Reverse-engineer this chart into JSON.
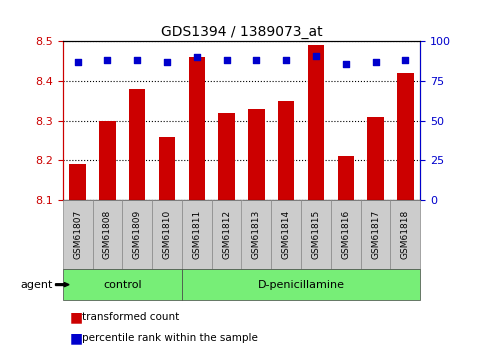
{
  "title": "GDS1394 / 1389073_at",
  "samples": [
    "GSM61807",
    "GSM61808",
    "GSM61809",
    "GSM61810",
    "GSM61811",
    "GSM61812",
    "GSM61813",
    "GSM61814",
    "GSM61815",
    "GSM61816",
    "GSM61817",
    "GSM61818"
  ],
  "bar_values": [
    8.19,
    8.3,
    8.38,
    8.26,
    8.46,
    8.32,
    8.33,
    8.35,
    8.49,
    8.21,
    8.31,
    8.42
  ],
  "percentile_values": [
    87,
    88,
    88,
    87,
    90,
    88,
    88,
    88,
    91,
    86,
    87,
    88
  ],
  "bar_bottom": 8.1,
  "ylim_left": [
    8.1,
    8.5
  ],
  "ylim_right": [
    0,
    100
  ],
  "yticks_left": [
    8.1,
    8.2,
    8.3,
    8.4,
    8.5
  ],
  "yticks_right": [
    0,
    25,
    50,
    75,
    100
  ],
  "bar_color": "#cc0000",
  "dot_color": "#0000cc",
  "green_color": "#77ee77",
  "gray_color": "#cccccc",
  "tick_label_color_left": "#cc0000",
  "tick_label_color_right": "#0000cc",
  "n_control": 4,
  "n_treatment": 8,
  "control_label": "control",
  "treatment_label": "D-penicillamine",
  "agent_label": "agent",
  "legend_bar_label": "transformed count",
  "legend_dot_label": "percentile rank within the sample",
  "bar_width": 0.55
}
